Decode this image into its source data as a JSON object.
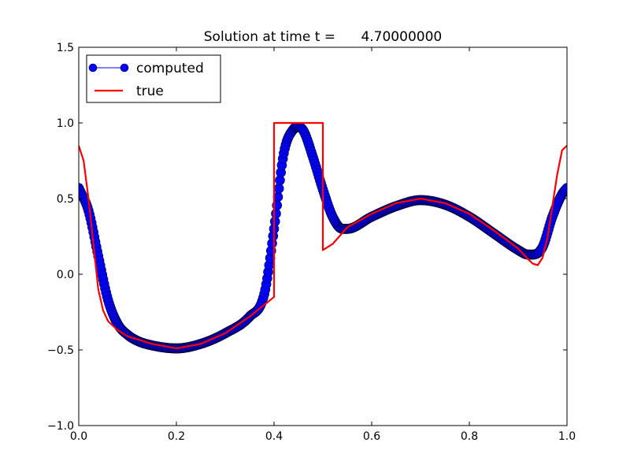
{
  "chart_data": {
    "type": "line",
    "title": "Solution at time t =      4.70000000",
    "xlabel": "",
    "ylabel": "",
    "xlim": [
      0.0,
      1.0
    ],
    "ylim": [
      -1.0,
      1.5
    ],
    "xticks": [
      "0.0",
      "0.2",
      "0.4",
      "0.6",
      "0.8",
      "1.0"
    ],
    "xtick_values": [
      0.0,
      0.2,
      0.4,
      0.6,
      0.8,
      1.0
    ],
    "yticks": [
      "−1.0",
      "−0.5",
      "0.0",
      "0.5",
      "1.0",
      "1.5"
    ],
    "ytick_values": [
      -1.0,
      -0.5,
      0.0,
      0.5,
      1.0,
      1.5
    ],
    "grid": false,
    "legend_position": "top-left",
    "series": [
      {
        "name": "computed",
        "style": "line-with-circle-markers",
        "color": "#0000ff",
        "marker_edge_color": "#000040",
        "x": [
          0.0,
          0.02,
          0.04,
          0.06,
          0.08,
          0.1,
          0.12,
          0.15,
          0.2,
          0.25,
          0.3,
          0.35,
          0.38,
          0.4,
          0.42,
          0.44,
          0.45,
          0.46,
          0.48,
          0.5,
          0.52,
          0.54,
          0.55,
          0.6,
          0.65,
          0.7,
          0.75,
          0.8,
          0.85,
          0.9,
          0.92,
          0.93,
          0.95,
          0.97,
          0.99,
          1.0
        ],
        "y": [
          0.57,
          0.42,
          0.12,
          -0.17,
          -0.33,
          -0.4,
          -0.44,
          -0.47,
          -0.49,
          -0.46,
          -0.39,
          -0.28,
          -0.13,
          0.3,
          0.8,
          0.96,
          0.97,
          0.95,
          0.77,
          0.56,
          0.38,
          0.3,
          0.3,
          0.38,
          0.45,
          0.49,
          0.46,
          0.38,
          0.27,
          0.16,
          0.13,
          0.13,
          0.18,
          0.38,
          0.53,
          0.57
        ]
      },
      {
        "name": "true",
        "style": "line",
        "color": "#ff0000",
        "x": [
          0.0,
          0.01,
          0.02,
          0.03,
          0.04,
          0.05,
          0.06,
          0.08,
          0.1,
          0.15,
          0.2,
          0.25,
          0.3,
          0.35,
          0.4,
          0.4,
          0.5,
          0.5,
          0.52,
          0.55,
          0.6,
          0.65,
          0.7,
          0.75,
          0.8,
          0.85,
          0.9,
          0.92,
          0.93,
          0.94,
          0.95,
          0.96,
          0.97,
          0.98,
          0.99,
          1.0
        ],
        "y": [
          0.85,
          0.75,
          0.5,
          0.2,
          -0.1,
          -0.24,
          -0.31,
          -0.37,
          -0.41,
          -0.46,
          -0.49,
          -0.46,
          -0.39,
          -0.28,
          -0.15,
          1.0,
          1.0,
          0.16,
          0.2,
          0.31,
          0.4,
          0.47,
          0.5,
          0.47,
          0.4,
          0.29,
          0.17,
          0.1,
          0.07,
          0.06,
          0.11,
          0.24,
          0.45,
          0.66,
          0.82,
          0.85
        ]
      }
    ]
  }
}
